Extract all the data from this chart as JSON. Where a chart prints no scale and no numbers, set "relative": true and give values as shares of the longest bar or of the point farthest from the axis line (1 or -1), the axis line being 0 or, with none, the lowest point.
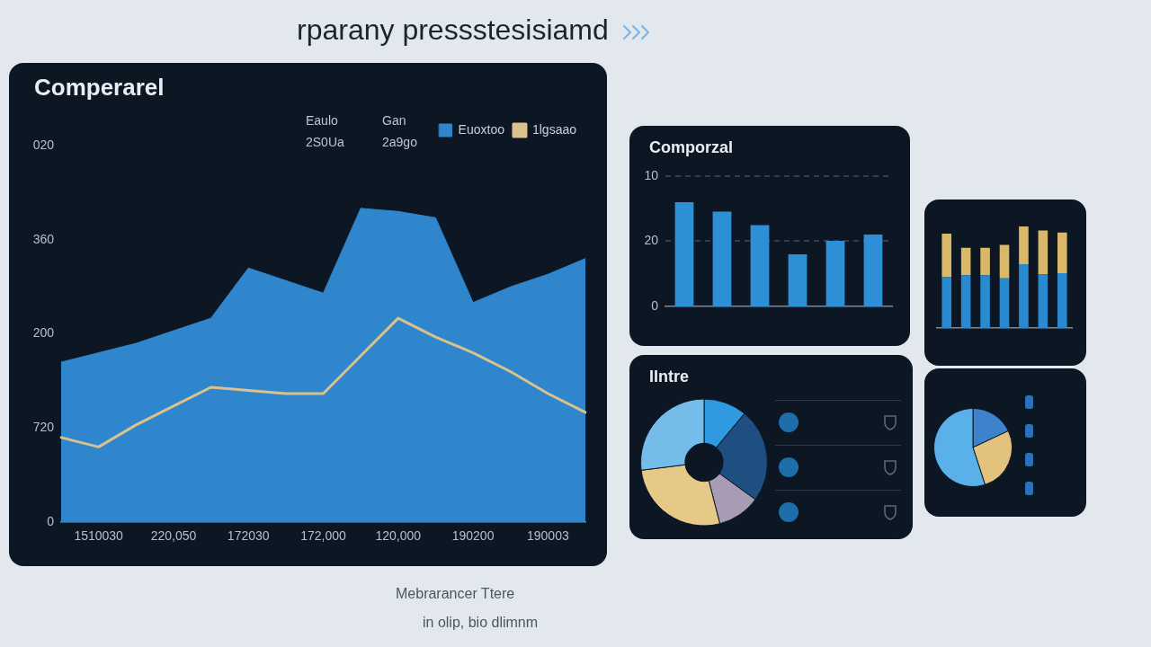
{
  "chart_data": [
    {
      "type": "area",
      "title": "rparany pressstesisiamd",
      "subtitle": "Comperarel",
      "annotations": [
        "Eaulo",
        "Gan",
        "2S0Ua",
        "2a9go",
        "Mebrarancer Ttere",
        "in olip, bio dlimnm",
        "0",
        "720",
        "200",
        "360",
        "020"
      ],
      "relative": true,
      "categories": [
        null,
        "1510030",
        null,
        "220,050",
        null,
        "172030",
        null,
        "172,000",
        null,
        "120,000",
        null,
        "190200",
        null,
        "190003",
        null
      ],
      "series": [
        {
          "type": "area",
          "name": "Euoxtoo",
          "color": "#2f86cc",
          "values": [
            0.51,
            0.54,
            0.57,
            0.61,
            0.65,
            0.81,
            0.77,
            0.73,
            1.0,
            0.99,
            0.97,
            0.7,
            0.75,
            0.79,
            0.84
          ]
        },
        {
          "type": "line",
          "name": "1lgsaao",
          "color": "#d9c28e",
          "values": [
            0.27,
            0.24,
            0.31,
            0.37,
            0.43,
            0.42,
            0.41,
            0.41,
            0.53,
            0.65,
            0.59,
            0.54,
            0.48,
            0.41,
            0.35
          ]
        }
      ],
      "legend": "top right"
    },
    {
      "type": "bar",
      "title": "Comporzal",
      "relative": true,
      "categories": [
        null,
        null,
        null,
        null,
        null,
        null
      ],
      "annotations": [
        "0",
        "20",
        "10"
      ],
      "series": [
        {
          "color": "#2d8fd5",
          "values": [
            1.0,
            0.91,
            0.78,
            0.5,
            0.63,
            0.69
          ]
        }
      ],
      "ref_lines": [
        {
          "axis": "y",
          "value": 0.63,
          "line_style": "dashed"
        },
        {
          "axis": "y",
          "value": 1.25,
          "line_style": "dashed"
        }
      ]
    },
    {
      "type": "bar",
      "stacked": true,
      "relative": true,
      "categories": [
        null,
        null,
        null,
        null,
        null,
        null,
        null
      ],
      "series": [
        {
          "color": "#2a8ad0",
          "values": [
            0.5,
            0.52,
            0.52,
            0.49,
            0.63,
            0.53,
            0.54
          ]
        },
        {
          "color": "#d9b86a",
          "values": [
            0.43,
            0.27,
            0.27,
            0.33,
            0.37,
            0.43,
            0.4
          ]
        }
      ]
    },
    {
      "type": "donut",
      "title": "IIntre",
      "categories": [
        null,
        null,
        null,
        null,
        null
      ],
      "values": [
        11,
        24,
        11,
        27,
        27
      ],
      "colors": [
        "#2f9ae0",
        "#1e4f80",
        "#a89cb4",
        "#e6c987",
        "#74bdea"
      ]
    },
    {
      "type": "pie",
      "categories": [
        null,
        null,
        null
      ],
      "values": [
        18,
        27,
        55
      ],
      "colors": [
        "#3f82cc",
        "#e3c27e",
        "#5ab0e8"
      ]
    }
  ]
}
